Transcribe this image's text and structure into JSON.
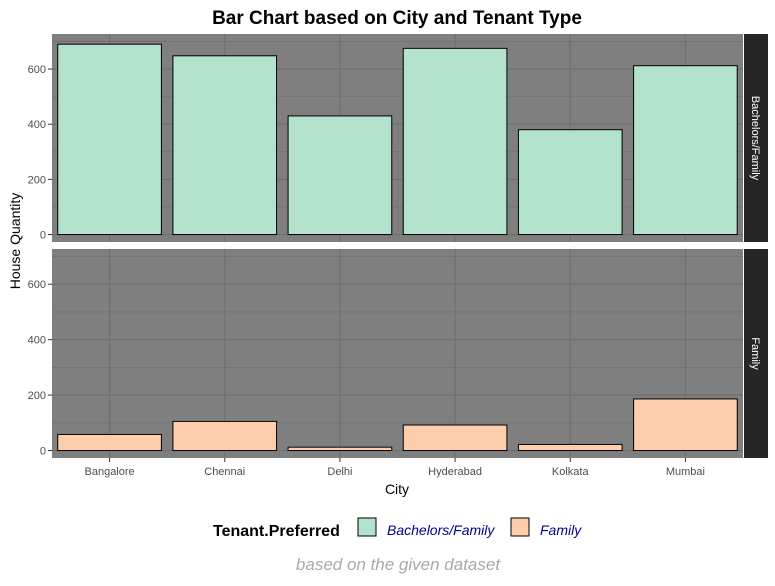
{
  "chart_data": {
    "type": "bar",
    "title": "Bar Chart based on City and Tenant Type",
    "xlabel": "City",
    "ylabel": "House Quantity",
    "caption": "based on the given dataset",
    "categories": [
      "Bangalore",
      "Chennai",
      "Delhi",
      "Hyderabad",
      "Kolkata",
      "Mumbai"
    ],
    "ylim": [
      0,
      720
    ],
    "yticks": [
      0,
      200,
      400,
      600
    ],
    "facets": [
      {
        "label": "Bachelors/Family",
        "series": "Bachelors/Family",
        "values": [
          690,
          648,
          430,
          675,
          380,
          612
        ]
      },
      {
        "label": "Family",
        "series": "Family",
        "values": [
          58,
          105,
          12,
          92,
          22,
          186
        ]
      }
    ],
    "legend": {
      "title": "Tenant.Preferred",
      "position": "bottom",
      "items": [
        {
          "label": "Bachelors/Family",
          "color": "#b3e2cd"
        },
        {
          "label": "Family",
          "color": "#fdcdac"
        }
      ]
    },
    "colors": {
      "panel_bg": "#7f7f7f",
      "grid": "#6e6e6e",
      "strip_bg": "#262626",
      "strip_text": "#ffffff",
      "legend_text": "#00008b",
      "caption_text": "#a9a9a9"
    },
    "grid": true
  }
}
